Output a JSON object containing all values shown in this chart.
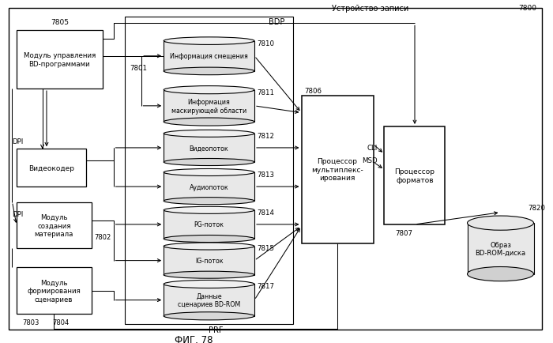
{
  "title": "ФИГ. 78",
  "outer_label": "Устройство записи",
  "outer_num": "7800",
  "bdp_label": "BDP",
  "prf_label": "PRF",
  "dpi1": "DPI",
  "dpi2": "DPI",
  "cli_label": "CLI",
  "msd_label": "MSD",
  "box_bdmgr": "Модуль управления\nBD-программами",
  "num_bdmgr": "7805",
  "box_videnc": "Видеокодер",
  "box_material": "Модуль\nсоздания\nматериала",
  "num_material": "7802",
  "box_scenario": "Модуль\nформирования\nсценариев",
  "num_scenario1": "7803",
  "num_scenario2": "7804",
  "box_mux": "Процессор\nмультиплекс-\nирования",
  "num_mux": "7806",
  "box_fmt": "Процессор\nформатов",
  "num_fmt": "7807",
  "disk_label": "Образ\nBD-ROM-диска",
  "num_disk": "7820",
  "num_7801": "7801",
  "cylinders": [
    {
      "label": "Информация смещения",
      "num": "7810"
    },
    {
      "label": "Информация\nмаскирующей области",
      "num": "7811"
    },
    {
      "label": "Видеопоток",
      "num": "7812"
    },
    {
      "label": "Аудиопоток",
      "num": "7813"
    },
    {
      "label": "PG-поток",
      "num": "7814"
    },
    {
      "label": "IG-поток",
      "num": "7815"
    },
    {
      "label": "Данные\nсценариев BD-ROM",
      "num": "7817"
    }
  ]
}
